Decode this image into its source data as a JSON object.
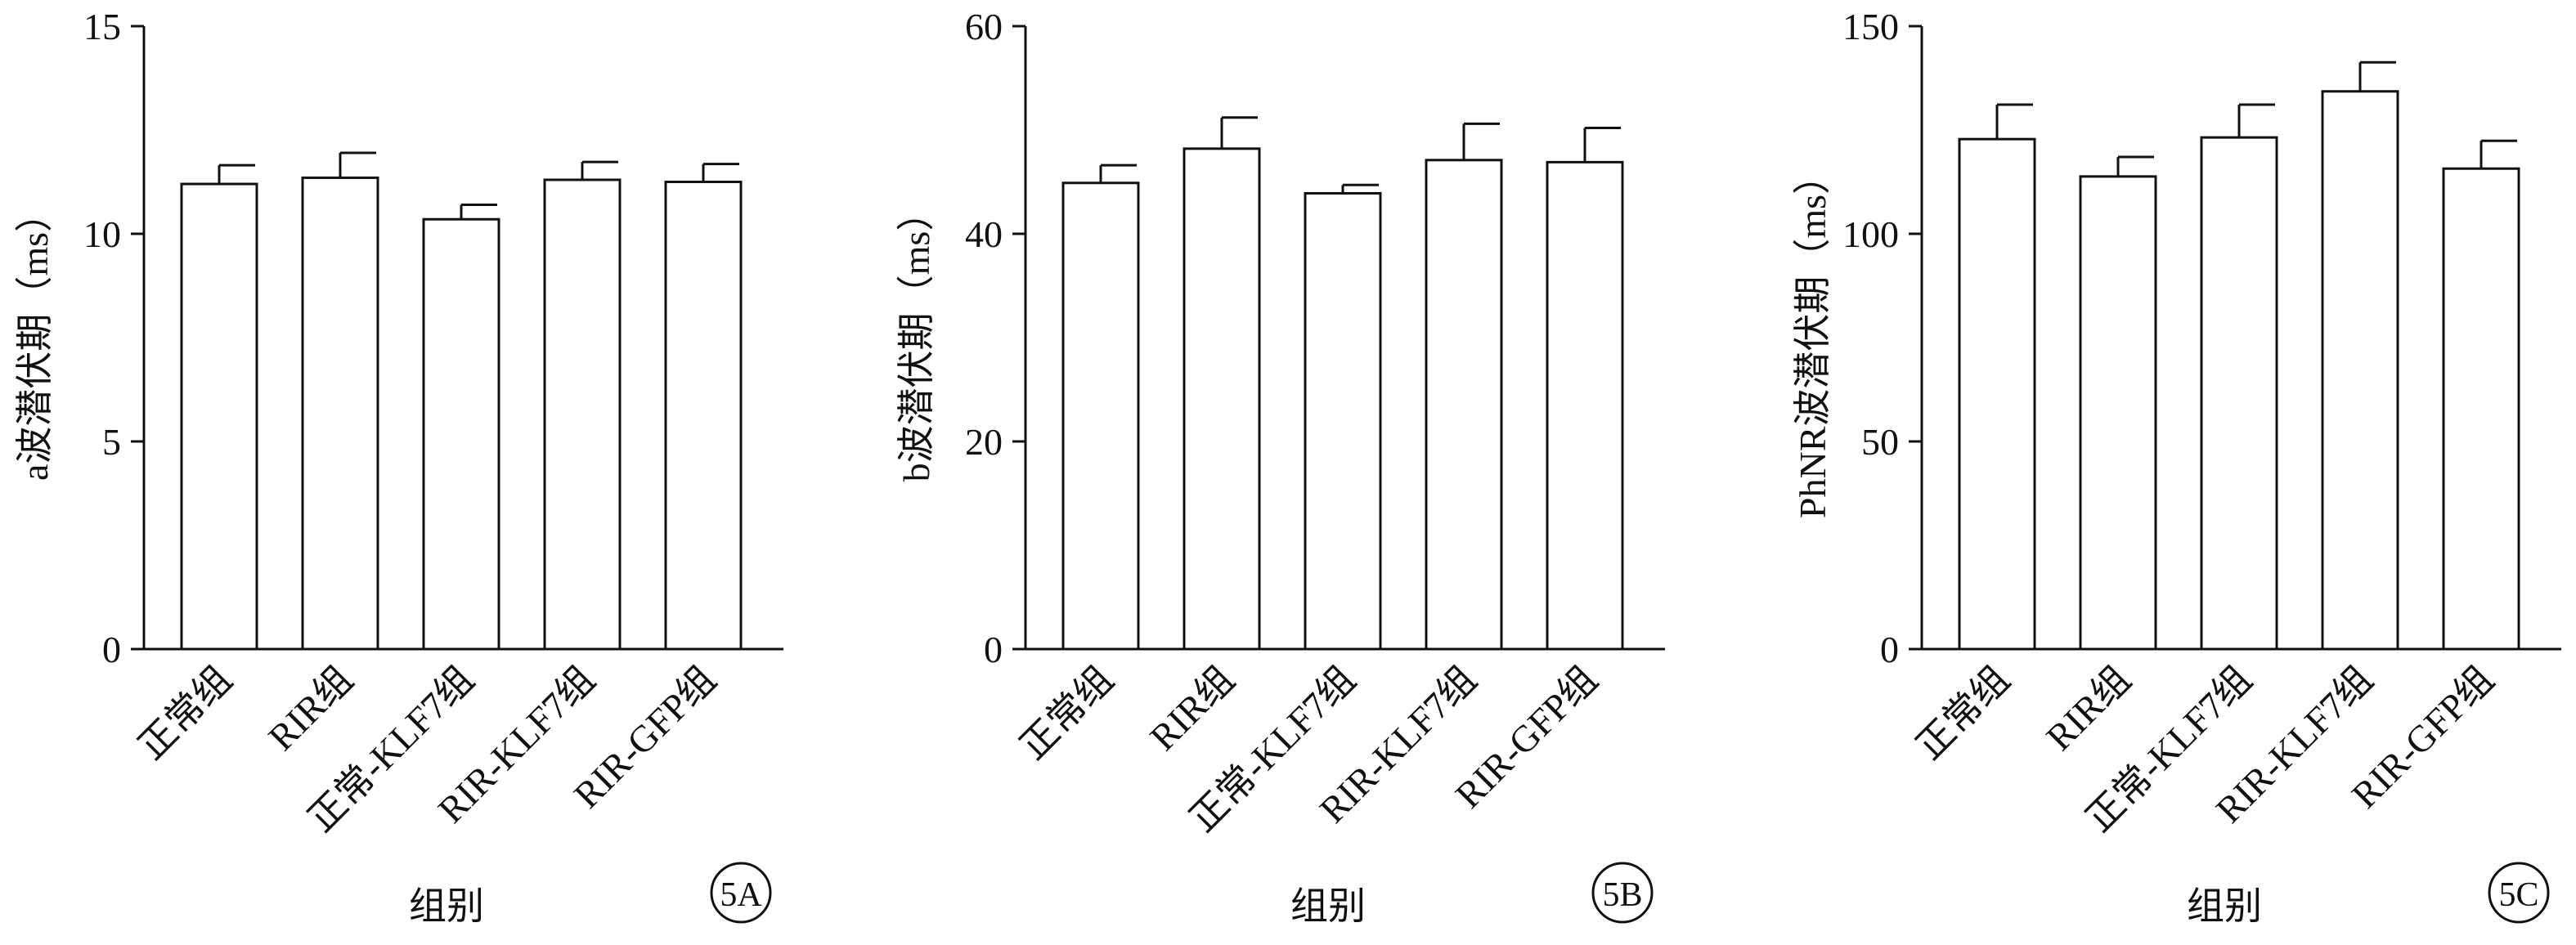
{
  "chart_data": [
    {
      "type": "bar",
      "panel_label": "5A",
      "y_label": "a波潜伏期（ms）",
      "x_label": "组别",
      "categories": [
        "正常组",
        "RIR组",
        "正常-KLF7组",
        "RIR-KLF7组",
        "RIR-GFP组"
      ],
      "values": [
        11.2,
        11.35,
        10.35,
        11.3,
        11.25
      ],
      "errors": [
        0.45,
        0.6,
        0.35,
        0.43,
        0.43
      ],
      "ylim": [
        0,
        15
      ],
      "yticks": [
        0,
        5,
        10,
        15
      ],
      "color": "#ffffff"
    },
    {
      "type": "bar",
      "panel_label": "5B",
      "y_label": "b波潜伏期（ms）",
      "x_label": "组别",
      "categories": [
        "正常组",
        "RIR组",
        "正常-KLF7组",
        "RIR-KLF7组",
        "RIR-GFP组"
      ],
      "values": [
        44.9,
        48.2,
        43.9,
        47.1,
        46.9
      ],
      "errors": [
        1.7,
        3.0,
        0.8,
        3.5,
        3.3
      ],
      "ylim": [
        0,
        60
      ],
      "yticks": [
        0,
        20,
        40,
        60
      ],
      "color": "#ffffff"
    },
    {
      "type": "bar",
      "panel_label": "5C",
      "y_label": "PhNR波潜伏期（ms）",
      "x_label": "组别",
      "categories": [
        "正常组",
        "RIR组",
        "正常-KLF7组",
        "RIR-KLF7组",
        "RIR-GFP组"
      ],
      "values": [
        122.8,
        113.8,
        123.2,
        134.3,
        115.7
      ],
      "errors": [
        8.3,
        4.7,
        7.9,
        7.0,
        6.7
      ],
      "ylim": [
        0,
        150
      ],
      "yticks": [
        0,
        50,
        100,
        150
      ],
      "color": "#ffffff"
    }
  ]
}
